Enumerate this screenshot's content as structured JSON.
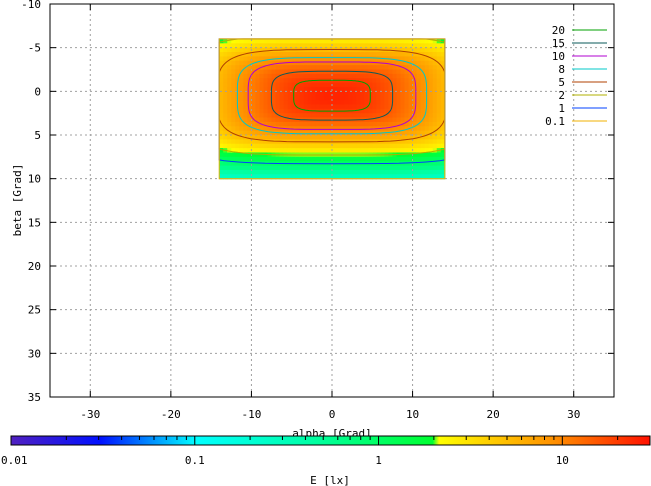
{
  "chart_data": {
    "type": "heatmap",
    "xlabel": "alpha [Grad]",
    "ylabel": "beta [Grad]",
    "colorbar_label": "E [lx]",
    "xlim": [
      -35,
      35
    ],
    "ylim": [
      35,
      -10
    ],
    "x_axis_reversed": false,
    "y_axis_reversed": true,
    "xticks": [
      -30,
      -20,
      -10,
      0,
      10,
      20,
      30
    ],
    "yticks": [
      -10,
      -5,
      0,
      5,
      10,
      15,
      20,
      25,
      30,
      35
    ],
    "grid": true,
    "legend_position": "top-right",
    "data_extent": {
      "alpha": [
        -14,
        14
      ],
      "beta": [
        -6,
        10
      ]
    },
    "peak_illuminance": 25,
    "colorbar": {
      "scale": "log",
      "range": [
        0.01,
        30
      ],
      "ticks": [
        {
          "value": 0.01,
          "label": "0.01"
        },
        {
          "value": 0.1,
          "label": "0.1"
        },
        {
          "value": 1,
          "label": "1"
        },
        {
          "value": 10,
          "label": "10"
        }
      ]
    },
    "contour_levels": [
      {
        "level": "20",
        "color": "#00a000"
      },
      {
        "level": "15",
        "color": "#0a5a5a"
      },
      {
        "level": "10",
        "color": "#b000d0"
      },
      {
        "level": "8",
        "color": "#00c8c8"
      },
      {
        "level": "5",
        "color": "#b04000"
      },
      {
        "level": "2",
        "color": "#b0b000"
      },
      {
        "level": "1",
        "color": "#0040ff"
      },
      {
        "level": "0.1",
        "color": "#f0b000"
      }
    ]
  }
}
